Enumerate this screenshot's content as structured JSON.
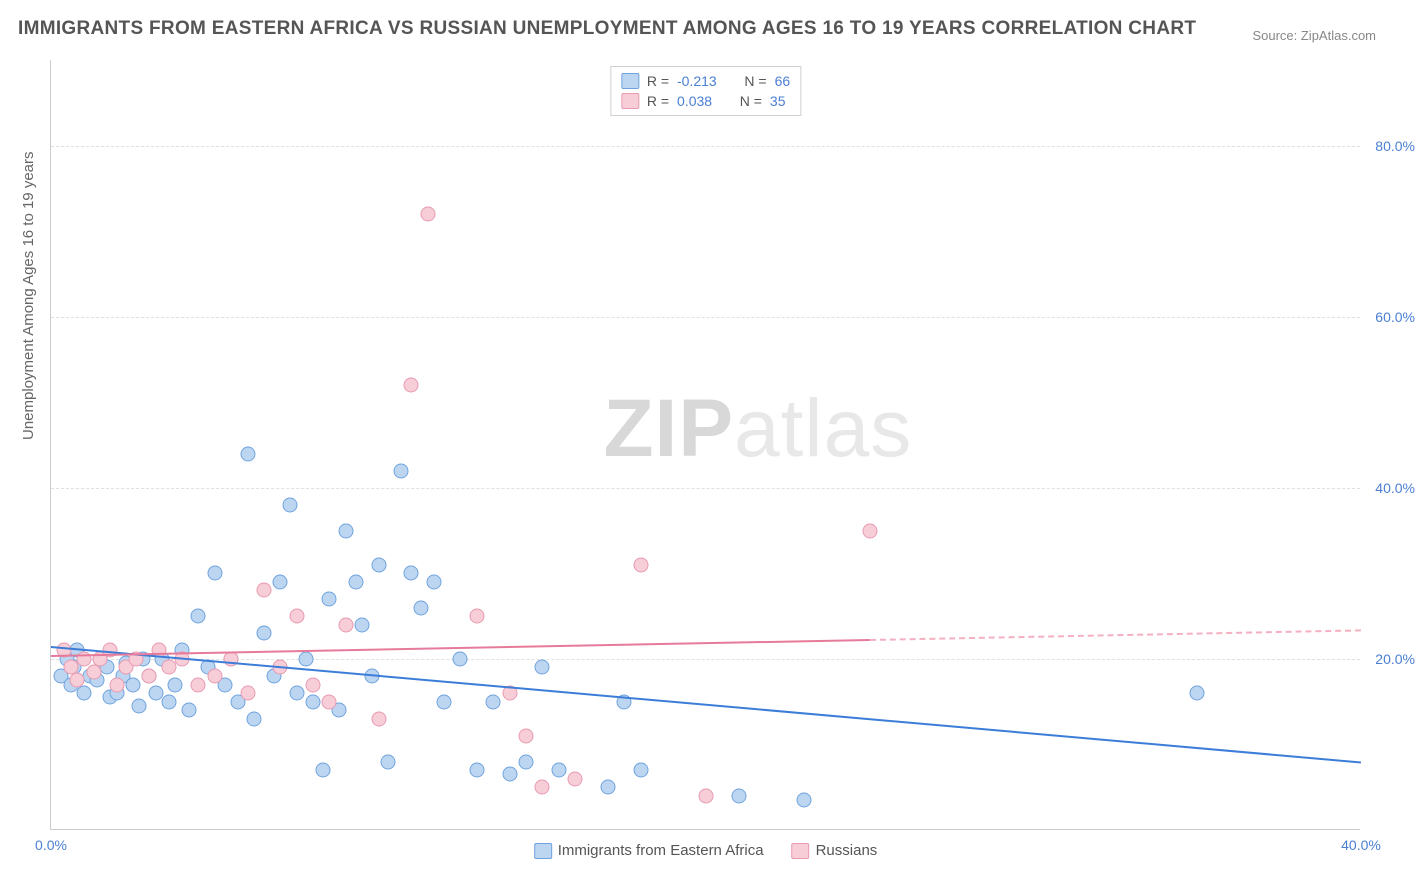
{
  "title": "IMMIGRANTS FROM EASTERN AFRICA VS RUSSIAN UNEMPLOYMENT AMONG AGES 16 TO 19 YEARS CORRELATION CHART",
  "source": "Source: ZipAtlas.com",
  "watermark": {
    "part1": "ZIP",
    "part2": "atlas"
  },
  "chart": {
    "type": "scatter",
    "background": "#ffffff",
    "grid_color": "#e0e0e0",
    "axis_color": "#cccccc",
    "tick_color": "#4a7fd4",
    "tick_fontsize": 14,
    "xlim": [
      0,
      40
    ],
    "ylim": [
      0,
      90
    ],
    "xticks": [
      {
        "v": 0,
        "l": "0.0%"
      },
      {
        "v": 40,
        "l": "40.0%"
      }
    ],
    "yticks": [
      {
        "v": 20,
        "l": "20.0%"
      },
      {
        "v": 40,
        "l": "40.0%"
      },
      {
        "v": 60,
        "l": "60.0%"
      },
      {
        "v": 80,
        "l": "80.0%"
      }
    ],
    "ylabel": "Unemployment Among Ages 16 to 19 years",
    "ylabel_fontsize": 15,
    "marker_radius": 7.5,
    "series": [
      {
        "name": "Immigrants from Eastern Africa",
        "fill": "#bcd5f0",
        "stroke": "#6fa3de",
        "r": -0.213,
        "n": 66,
        "trend": {
          "y_at_x0": 21.5,
          "y_at_x40": 8.0,
          "solid_to_x": 40,
          "color": "#3b7dd8"
        },
        "points": [
          [
            0.3,
            18
          ],
          [
            0.5,
            20
          ],
          [
            0.6,
            17
          ],
          [
            0.7,
            19
          ],
          [
            0.8,
            21
          ],
          [
            1.0,
            16
          ],
          [
            1.2,
            18
          ],
          [
            1.4,
            17.5
          ],
          [
            1.5,
            20
          ],
          [
            1.7,
            19
          ],
          [
            1.8,
            15.5
          ],
          [
            2.0,
            16
          ],
          [
            2.2,
            18
          ],
          [
            2.3,
            19.5
          ],
          [
            2.5,
            17
          ],
          [
            2.7,
            14.5
          ],
          [
            2.8,
            20
          ],
          [
            3.0,
            18
          ],
          [
            3.2,
            16
          ],
          [
            3.4,
            20
          ],
          [
            3.6,
            15
          ],
          [
            3.8,
            17
          ],
          [
            4.0,
            21
          ],
          [
            4.2,
            14
          ],
          [
            4.5,
            25
          ],
          [
            4.8,
            19
          ],
          [
            5.0,
            30
          ],
          [
            5.3,
            17
          ],
          [
            5.5,
            20
          ],
          [
            5.7,
            15
          ],
          [
            6.0,
            44
          ],
          [
            6.2,
            13
          ],
          [
            6.5,
            23
          ],
          [
            6.8,
            18
          ],
          [
            7.0,
            29
          ],
          [
            7.3,
            38
          ],
          [
            7.5,
            16
          ],
          [
            7.8,
            20
          ],
          [
            8.0,
            15
          ],
          [
            8.3,
            7
          ],
          [
            8.5,
            27
          ],
          [
            8.8,
            14
          ],
          [
            9.0,
            35
          ],
          [
            9.3,
            29
          ],
          [
            9.5,
            24
          ],
          [
            9.8,
            18
          ],
          [
            10.0,
            31
          ],
          [
            10.3,
            8
          ],
          [
            10.7,
            42
          ],
          [
            11.0,
            30
          ],
          [
            11.3,
            26
          ],
          [
            11.7,
            29
          ],
          [
            12.0,
            15
          ],
          [
            12.5,
            20
          ],
          [
            13.0,
            7
          ],
          [
            13.5,
            15
          ],
          [
            14.0,
            6.5
          ],
          [
            14.5,
            8
          ],
          [
            15.0,
            19
          ],
          [
            15.5,
            7
          ],
          [
            17.0,
            5
          ],
          [
            17.5,
            15
          ],
          [
            18.0,
            7
          ],
          [
            21.0,
            4
          ],
          [
            23.0,
            3.5
          ],
          [
            35.0,
            16
          ]
        ]
      },
      {
        "name": "Russians",
        "fill": "#f7cdd8",
        "stroke": "#e89ab1",
        "r": 0.038,
        "n": 35,
        "trend": {
          "y_at_x0": 20.5,
          "y_at_x40": 23.5,
          "solid_to_x": 25,
          "color_solid": "#e67a9a",
          "color_dash": "#f4b0c0"
        },
        "points": [
          [
            0.4,
            21
          ],
          [
            0.6,
            19
          ],
          [
            0.8,
            17.5
          ],
          [
            1.0,
            20
          ],
          [
            1.3,
            18.5
          ],
          [
            1.5,
            20
          ],
          [
            1.8,
            21
          ],
          [
            2.0,
            17
          ],
          [
            2.3,
            19
          ],
          [
            2.6,
            20
          ],
          [
            3.0,
            18
          ],
          [
            3.3,
            21
          ],
          [
            3.6,
            19
          ],
          [
            4.0,
            20
          ],
          [
            4.5,
            17
          ],
          [
            5.0,
            18
          ],
          [
            5.5,
            20
          ],
          [
            6.0,
            16
          ],
          [
            6.5,
            28
          ],
          [
            7.0,
            19
          ],
          [
            7.5,
            25
          ],
          [
            8.0,
            17
          ],
          [
            8.5,
            15
          ],
          [
            9.0,
            24
          ],
          [
            10.0,
            13
          ],
          [
            11.0,
            52
          ],
          [
            11.5,
            72
          ],
          [
            13.0,
            25
          ],
          [
            14.0,
            16
          ],
          [
            14.5,
            11
          ],
          [
            15.0,
            5
          ],
          [
            18.0,
            31
          ],
          [
            20.0,
            4
          ],
          [
            25.0,
            35
          ],
          [
            16.0,
            6
          ]
        ]
      }
    ],
    "legend_top": {
      "labels": {
        "r": "R =",
        "n": "N ="
      }
    },
    "legend_bottom": [
      {
        "swatch_fill": "#bcd5f0",
        "swatch_stroke": "#6fa3de",
        "label": "Immigrants from Eastern Africa"
      },
      {
        "swatch_fill": "#f7cdd8",
        "swatch_stroke": "#e89ab1",
        "label": "Russians"
      }
    ]
  }
}
